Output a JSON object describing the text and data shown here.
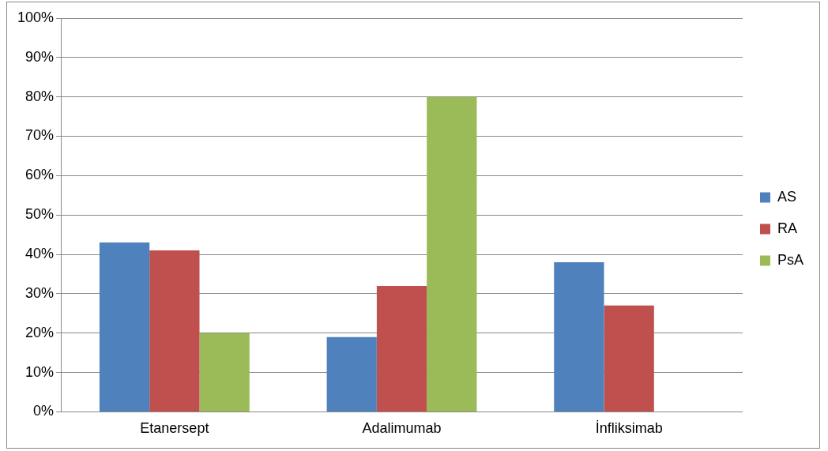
{
  "chart_data": {
    "type": "bar",
    "categories": [
      "Etanersept",
      "Adalimumab",
      "İnfliksimab"
    ],
    "series": [
      {
        "name": "AS",
        "color": "#4f81bd",
        "values": [
          43,
          19,
          38
        ]
      },
      {
        "name": "RA",
        "color": "#c0504d",
        "values": [
          41,
          32,
          27
        ]
      },
      {
        "name": "PsA",
        "color": "#9bbb59",
        "values": [
          20,
          80,
          0
        ]
      }
    ],
    "ylim": [
      0,
      100
    ],
    "yticks": [
      {
        "value": 0,
        "label": "0%"
      },
      {
        "value": 10,
        "label": "10%"
      },
      {
        "value": 20,
        "label": "20%"
      },
      {
        "value": 30,
        "label": "30%"
      },
      {
        "value": 40,
        "label": "40%"
      },
      {
        "value": 50,
        "label": "50%"
      },
      {
        "value": 60,
        "label": "60%"
      },
      {
        "value": 70,
        "label": "70%"
      },
      {
        "value": 80,
        "label": "80%"
      },
      {
        "value": 90,
        "label": "90%"
      },
      {
        "value": 100,
        "label": "100%"
      }
    ],
    "grid": "y",
    "legend": "right"
  }
}
